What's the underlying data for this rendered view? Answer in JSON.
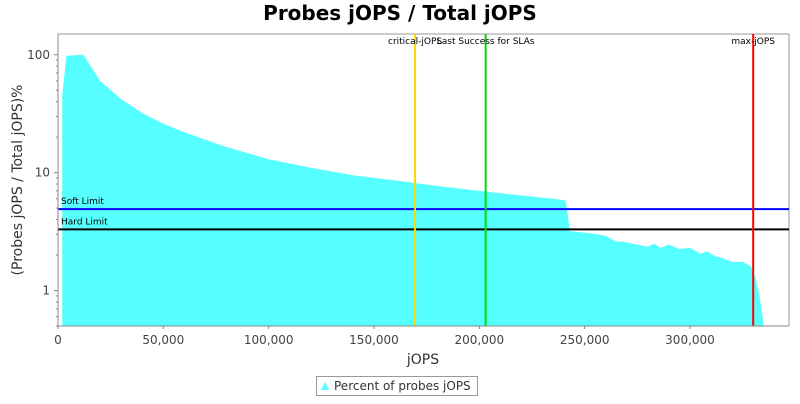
{
  "chart_data": {
    "type": "area",
    "title": "Probes jOPS / Total jOPS",
    "xlabel": "jOPS",
    "ylabel": "(Probes jOPS / Total jOPS)%",
    "xlim": [
      0,
      347000
    ],
    "ylim": [
      0.5,
      150
    ],
    "yscale": "log",
    "x_ticks": [
      0,
      50000,
      100000,
      150000,
      200000,
      250000,
      300000
    ],
    "x_tick_labels": [
      "0",
      "50,000",
      "100,000",
      "150,000",
      "200,000",
      "250,000",
      "300,000"
    ],
    "y_ticks": [
      1,
      10,
      100
    ],
    "y_tick_labels": [
      "1",
      "10",
      "100"
    ],
    "series": [
      {
        "name": "Percent of probes jOPS",
        "color": "#55FFFF",
        "x": [
          2000,
          4000,
          12000,
          20000,
          30000,
          40000,
          50000,
          60000,
          70000,
          80000,
          100000,
          120000,
          140000,
          160000,
          180000,
          200000,
          220000,
          235000,
          241000,
          243000,
          250000,
          256000,
          260000,
          265000,
          268000,
          275000,
          280000,
          283000,
          286000,
          290000,
          295000,
          300000,
          305000,
          308000,
          312000,
          315000,
          320000,
          325000,
          329000,
          331000,
          333000,
          335000
        ],
        "y": [
          45,
          98,
          100,
          60,
          42,
          32,
          26,
          22,
          19,
          16.5,
          13,
          11,
          9.5,
          8.6,
          7.7,
          7,
          6.4,
          6,
          5.8,
          3.2,
          3.1,
          3.0,
          2.9,
          2.6,
          2.6,
          2.45,
          2.35,
          2.5,
          2.3,
          2.45,
          2.25,
          2.3,
          2.05,
          2.15,
          1.95,
          1.9,
          1.75,
          1.75,
          1.6,
          1.3,
          0.9,
          0.5
        ]
      }
    ],
    "lines": {
      "horizontal": [
        {
          "label": "Soft Limit",
          "y": 4.9,
          "color": "#0000FF"
        },
        {
          "label": "Hard Limit",
          "y": 3.3,
          "color": "#000000"
        }
      ],
      "vertical": [
        {
          "label": "critical-jOPS",
          "x": 169500,
          "color": "#FFD700"
        },
        {
          "label": "Last Success for SLAs",
          "x": 203000,
          "color": "#00DD00"
        },
        {
          "label": "max-jOPS",
          "x": 330000,
          "color": "#FF0000"
        }
      ]
    },
    "grid": false,
    "legend_position": "bottom"
  }
}
